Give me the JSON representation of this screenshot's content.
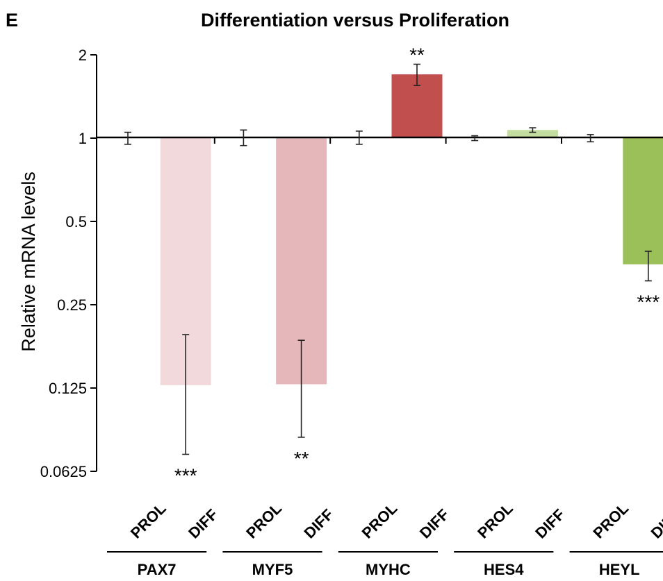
{
  "panel_letter": "E",
  "chart_data": {
    "type": "bar",
    "title": "Differentiation versus Proliferation",
    "ylabel": "Relative mRNA levels",
    "xlabel": "",
    "yscale": "log2",
    "baseline": 1,
    "ylim": [
      0.0625,
      2
    ],
    "yticks": [
      2,
      1,
      0.5,
      0.25,
      0.125,
      0.0625
    ],
    "ytick_labels": [
      "2",
      "1",
      "0.5",
      "0.25",
      "0.125",
      "0.0625"
    ],
    "groups": [
      "PAX7",
      "MYF5",
      "MYHC",
      "HES4",
      "HEYL"
    ],
    "conditions": [
      "PROL",
      "DIFF"
    ],
    "bars": [
      {
        "group": "PAX7",
        "condition": "PROL",
        "value": 1.0,
        "err_low": 0.95,
        "err_high": 1.05,
        "color": "#ffffff",
        "sig": ""
      },
      {
        "group": "PAX7",
        "condition": "DIFF",
        "value": 0.128,
        "err_low": 0.072,
        "err_high": 0.195,
        "color": "#f2d9db",
        "sig": "***"
      },
      {
        "group": "MYF5",
        "condition": "PROL",
        "value": 1.0,
        "err_low": 0.94,
        "err_high": 1.07,
        "color": "#ffffff",
        "sig": ""
      },
      {
        "group": "MYF5",
        "condition": "DIFF",
        "value": 0.129,
        "err_low": 0.083,
        "err_high": 0.186,
        "color": "#e5b7ba",
        "sig": "**"
      },
      {
        "group": "MYHC",
        "condition": "PROL",
        "value": 1.0,
        "err_low": 0.95,
        "err_high": 1.06,
        "color": "#ffffff",
        "sig": ""
      },
      {
        "group": "MYHC",
        "condition": "DIFF",
        "value": 1.7,
        "err_low": 1.55,
        "err_high": 1.85,
        "color": "#c14f4e",
        "sig": "**"
      },
      {
        "group": "HES4",
        "condition": "PROL",
        "value": 1.0,
        "err_low": 0.98,
        "err_high": 1.02,
        "color": "#ffffff",
        "sig": ""
      },
      {
        "group": "HES4",
        "condition": "DIFF",
        "value": 1.07,
        "err_low": 1.05,
        "err_high": 1.09,
        "color": "#c3dc9f",
        "sig": ""
      },
      {
        "group": "HEYL",
        "condition": "PROL",
        "value": 1.0,
        "err_low": 0.97,
        "err_high": 1.03,
        "color": "#ffffff",
        "sig": ""
      },
      {
        "group": "HEYL",
        "condition": "DIFF",
        "value": 0.35,
        "err_low": 0.305,
        "err_high": 0.39,
        "color": "#9bbf59",
        "sig": "***"
      }
    ],
    "grid": false,
    "legend": "none"
  }
}
